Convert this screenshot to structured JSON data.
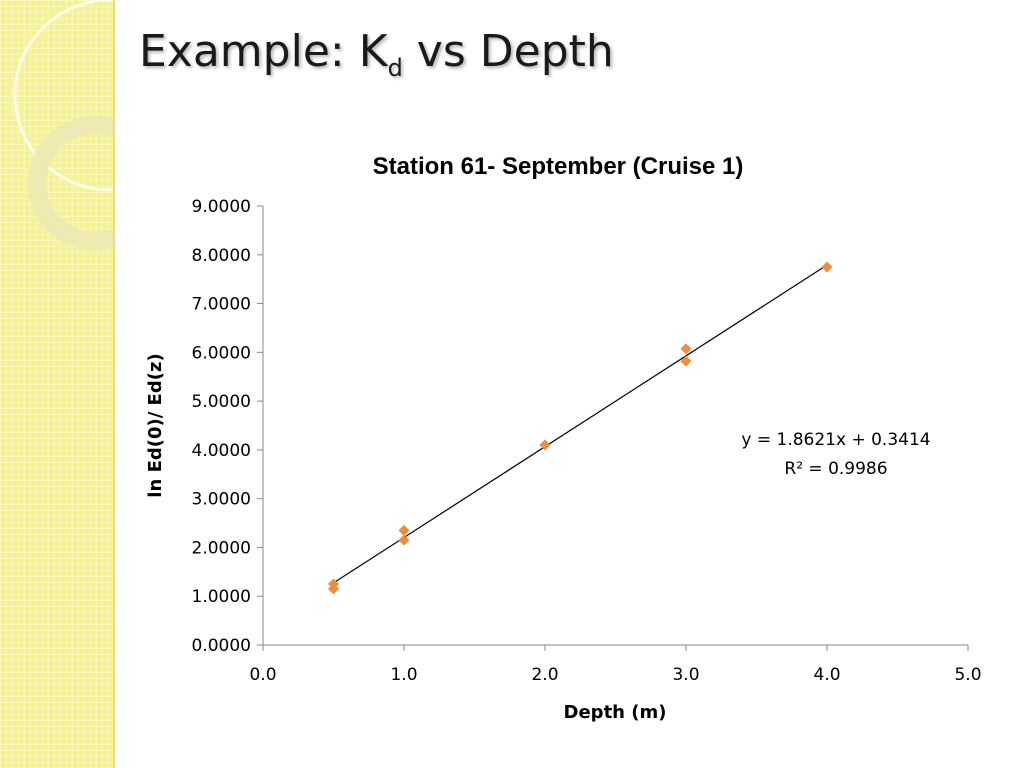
{
  "slide": {
    "title_main": "Example: K",
    "title_sub": "d",
    "title_rest": "vs Depth"
  },
  "colors": {
    "side_strip": "#f6f38a",
    "marker": "#f08c3c",
    "trendline": "#000000"
  },
  "chart_data": {
    "type": "scatter",
    "title": "Station 61- September (Cruise 1)",
    "xlabel": "Depth (m)",
    "ylabel": "ln Ed(0)/ Ed(z)",
    "xlim": [
      0,
      5
    ],
    "ylim": [
      0,
      9
    ],
    "x_ticks": [
      "0.0",
      "1.0",
      "2.0",
      "3.0",
      "4.0",
      "5.0"
    ],
    "y_ticks": [
      "0.0000",
      "1.0000",
      "2.0000",
      "3.0000",
      "4.0000",
      "5.0000",
      "6.0000",
      "7.0000",
      "8.0000",
      "9.0000"
    ],
    "grid": false,
    "legend": "none",
    "marker": "diamond",
    "series": [
      {
        "x": [
          0.5,
          0.5,
          1.0,
          1.0,
          2.0,
          3.0,
          3.0,
          4.0
        ],
        "y": [
          1.25,
          1.15,
          2.35,
          2.15,
          4.1,
          6.07,
          5.82,
          7.75
        ]
      }
    ],
    "trendline": {
      "type": "linear",
      "slope": 1.8621,
      "intercept": 0.3414,
      "x_range": [
        0.5,
        4.0
      ]
    },
    "annotations": {
      "equation": "y = 1.8621x + 0.3414",
      "r_squared": "R² = 0.9986"
    }
  }
}
